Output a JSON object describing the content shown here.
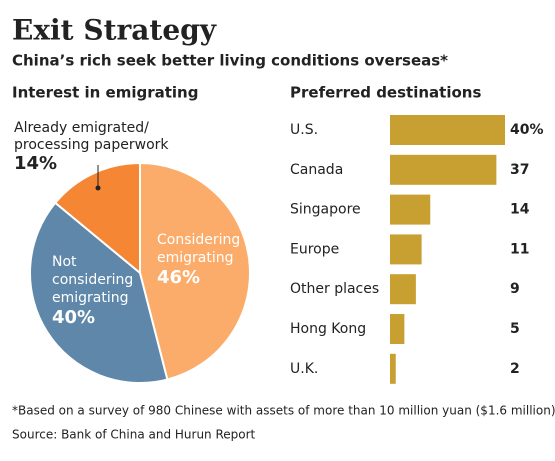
{
  "title": "Exit Strategy",
  "subtitle": "China’s rich seek better living conditions overseas*",
  "footnote": "*Based on a survey of 980 Chinese with assets of more than 10 million yuan ($1.6 million)",
  "source": "Source: Bank of China and Hurun Report",
  "chart_data": [
    {
      "type": "pie",
      "title": "Interest in emigrating",
      "categories": [
        "Already emigrated/\nprocessing paperwork",
        "Considering\nemigrating",
        "Not\nconsidering\nemigrating"
      ],
      "values": [
        14,
        46,
        40
      ],
      "value_labels": [
        "14%",
        "46%",
        "40%"
      ],
      "colors": [
        "#f58634",
        "#fbac6a",
        "#5e87aa"
      ]
    },
    {
      "type": "bar",
      "title": "Preferred destinations",
      "categories": [
        "U.S.",
        "Canada",
        "Singapore",
        "Europe",
        "Other places",
        "Hong Kong",
        "U.K."
      ],
      "values": [
        40,
        37,
        14,
        11,
        9,
        5,
        2
      ],
      "value_labels": [
        "40%",
        "37",
        "14",
        "11",
        "9",
        "5",
        "2"
      ],
      "color": "#c8a031"
    }
  ]
}
